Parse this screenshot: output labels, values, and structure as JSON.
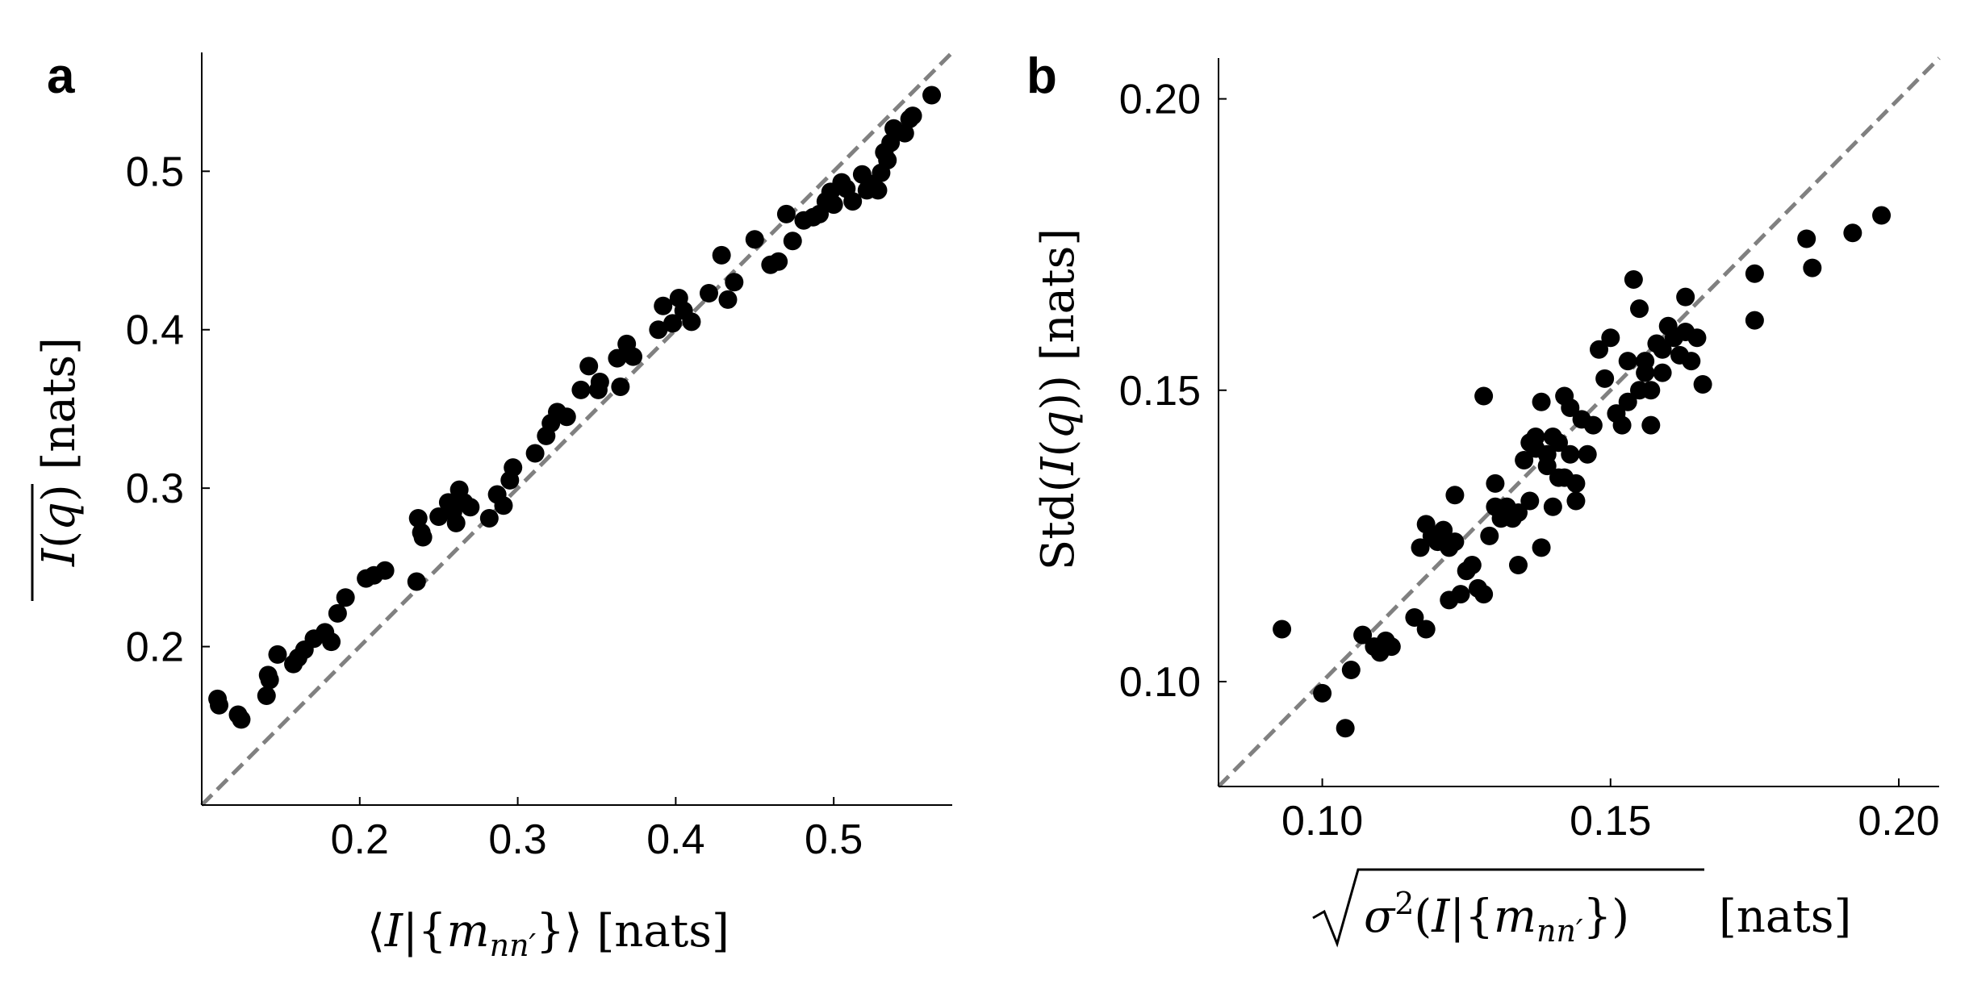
{
  "chart_data": [
    {
      "type": "scatter",
      "panel": "a",
      "xlabel": "⟨I|{m_nn′}⟩ [nats]",
      "ylabel": "I(q) [nats]",
      "xlim": [
        0.1,
        0.575
      ],
      "ylim": [
        0.1,
        0.575
      ],
      "xticks": [
        0.2,
        0.3,
        0.4,
        0.5
      ],
      "yticks": [
        0.2,
        0.3,
        0.4,
        0.5
      ],
      "xtick_labels": [
        "0.2",
        "0.3",
        "0.4",
        "0.5"
      ],
      "ytick_labels": [
        "0.2",
        "0.3",
        "0.4",
        "0.5"
      ],
      "reference_line": "y = x (dashed gray)",
      "x": [
        0.11,
        0.111,
        0.123,
        0.125,
        0.141,
        0.143,
        0.142,
        0.148,
        0.158,
        0.161,
        0.165,
        0.171,
        0.178,
        0.182,
        0.186,
        0.191,
        0.204,
        0.209,
        0.216,
        0.236,
        0.237,
        0.239,
        0.24,
        0.25,
        0.256,
        0.259,
        0.261,
        0.263,
        0.266,
        0.27,
        0.282,
        0.287,
        0.291,
        0.295,
        0.297,
        0.311,
        0.318,
        0.321,
        0.325,
        0.331,
        0.34,
        0.345,
        0.351,
        0.352,
        0.363,
        0.365,
        0.369,
        0.373,
        0.389,
        0.392,
        0.398,
        0.402,
        0.405,
        0.41,
        0.421,
        0.429,
        0.433,
        0.437,
        0.45,
        0.46,
        0.465,
        0.47,
        0.474,
        0.481,
        0.487,
        0.491,
        0.495,
        0.498,
        0.5,
        0.505,
        0.508,
        0.512,
        0.518,
        0.521,
        0.525,
        0.528,
        0.53,
        0.532,
        0.534,
        0.536,
        0.538,
        0.545,
        0.548,
        0.55,
        0.562
      ],
      "y": [
        0.167,
        0.163,
        0.157,
        0.154,
        0.169,
        0.179,
        0.182,
        0.195,
        0.189,
        0.193,
        0.198,
        0.205,
        0.209,
        0.203,
        0.221,
        0.231,
        0.243,
        0.245,
        0.248,
        0.241,
        0.281,
        0.272,
        0.269,
        0.282,
        0.291,
        0.285,
        0.278,
        0.299,
        0.291,
        0.288,
        0.281,
        0.296,
        0.289,
        0.305,
        0.313,
        0.322,
        0.333,
        0.341,
        0.348,
        0.345,
        0.362,
        0.377,
        0.362,
        0.367,
        0.382,
        0.364,
        0.391,
        0.383,
        0.4,
        0.415,
        0.404,
        0.42,
        0.412,
        0.405,
        0.423,
        0.447,
        0.419,
        0.43,
        0.457,
        0.441,
        0.443,
        0.473,
        0.456,
        0.469,
        0.471,
        0.473,
        0.481,
        0.487,
        0.479,
        0.493,
        0.489,
        0.481,
        0.498,
        0.488,
        0.492,
        0.488,
        0.499,
        0.512,
        0.507,
        0.518,
        0.527,
        0.524,
        0.533,
        0.535,
        0.548
      ]
    },
    {
      "type": "scatter",
      "panel": "b",
      "xlabel": "√σ²(I|{m_nn′}) [nats]",
      "ylabel": "Std(I(q)) [nats]",
      "xlim": [
        0.082,
        0.207
      ],
      "ylim": [
        0.082,
        0.207
      ],
      "xticks": [
        0.1,
        0.15,
        0.2
      ],
      "yticks": [
        0.1,
        0.15,
        0.2
      ],
      "xtick_labels": [
        "0.10",
        "0.15",
        "0.20"
      ],
      "ytick_labels": [
        "0.10",
        "0.15",
        "0.20"
      ],
      "reference_line": "y = x (dashed gray)",
      "x": [
        0.093,
        0.1,
        0.104,
        0.105,
        0.107,
        0.109,
        0.11,
        0.111,
        0.112,
        0.116,
        0.117,
        0.118,
        0.118,
        0.119,
        0.12,
        0.121,
        0.122,
        0.122,
        0.123,
        0.123,
        0.124,
        0.125,
        0.126,
        0.127,
        0.128,
        0.128,
        0.129,
        0.13,
        0.13,
        0.131,
        0.132,
        0.133,
        0.134,
        0.134,
        0.135,
        0.136,
        0.136,
        0.137,
        0.137,
        0.138,
        0.138,
        0.139,
        0.139,
        0.14,
        0.14,
        0.141,
        0.141,
        0.142,
        0.142,
        0.143,
        0.143,
        0.144,
        0.144,
        0.145,
        0.146,
        0.147,
        0.148,
        0.149,
        0.15,
        0.151,
        0.152,
        0.153,
        0.153,
        0.154,
        0.155,
        0.155,
        0.156,
        0.156,
        0.157,
        0.157,
        0.158,
        0.159,
        0.159,
        0.16,
        0.161,
        0.162,
        0.163,
        0.163,
        0.164,
        0.165,
        0.166,
        0.175,
        0.175,
        0.184,
        0.185,
        0.192,
        0.197
      ],
      "y": [
        0.109,
        0.098,
        0.092,
        0.102,
        0.108,
        0.106,
        0.105,
        0.107,
        0.106,
        0.111,
        0.123,
        0.127,
        0.109,
        0.125,
        0.124,
        0.126,
        0.114,
        0.123,
        0.124,
        0.132,
        0.115,
        0.119,
        0.12,
        0.116,
        0.115,
        0.149,
        0.125,
        0.13,
        0.134,
        0.128,
        0.13,
        0.128,
        0.129,
        0.12,
        0.138,
        0.131,
        0.141,
        0.142,
        0.14,
        0.123,
        0.148,
        0.139,
        0.137,
        0.13,
        0.142,
        0.135,
        0.141,
        0.135,
        0.149,
        0.139,
        0.147,
        0.131,
        0.134,
        0.145,
        0.139,
        0.144,
        0.157,
        0.152,
        0.159,
        0.146,
        0.144,
        0.148,
        0.155,
        0.169,
        0.15,
        0.164,
        0.155,
        0.153,
        0.144,
        0.15,
        0.158,
        0.157,
        0.153,
        0.161,
        0.159,
        0.156,
        0.166,
        0.16,
        0.155,
        0.159,
        0.151,
        0.17,
        0.162,
        0.176,
        0.171,
        0.177,
        0.18
      ]
    }
  ],
  "panels": {
    "a": {
      "letter": "a"
    },
    "b": {
      "letter": "b"
    }
  },
  "colors": {
    "points": "#000000",
    "reference_line": "#808080",
    "axes": "#000000",
    "background": "#ffffff"
  }
}
